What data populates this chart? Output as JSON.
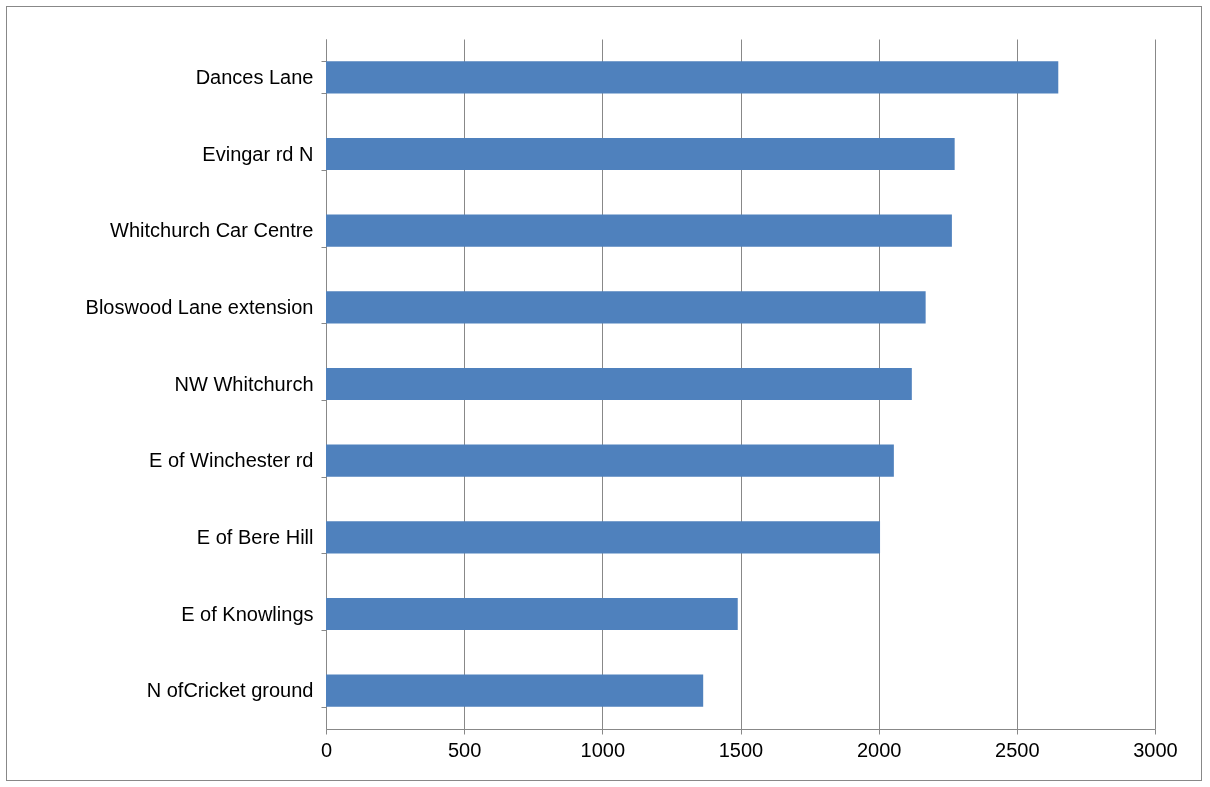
{
  "chart_data": {
    "type": "bar",
    "orientation": "horizontal",
    "categories": [
      "Dances Lane",
      "Evingar rd N",
      "Whitchurch Car Centre",
      "Bloswood Lane extension",
      "NW Whitchurch",
      "E of Winchester rd",
      "E of Bere Hill",
      "E of Knowlings",
      "N ofCricket ground"
    ],
    "values": [
      2650,
      2275,
      2265,
      2170,
      2120,
      2055,
      2005,
      1490,
      1365
    ],
    "color": "#4f81bd",
    "xlim": [
      0,
      3000
    ],
    "xticks": [
      0,
      500,
      1000,
      1500,
      2000,
      2500,
      3000
    ],
    "grid": "x"
  }
}
